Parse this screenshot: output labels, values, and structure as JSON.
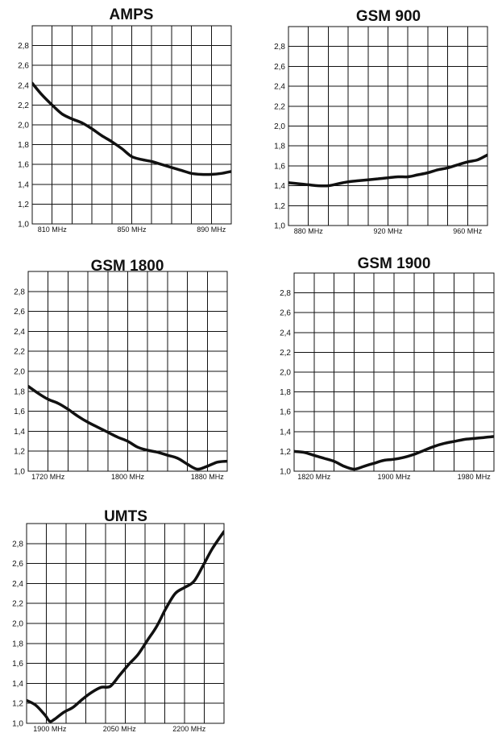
{
  "chart_data": [
    {
      "type": "line",
      "title": "AMPS",
      "ylim": [
        1.0,
        3.0
      ],
      "yticks": [
        "1,0",
        "1,2",
        "1,4",
        "1,6",
        "1,8",
        "2,0",
        "2,2",
        "2,4",
        "2,6",
        "2,8"
      ],
      "xlim": [
        800,
        900
      ],
      "xticks": [
        {
          "value": 810,
          "label": "810 MHz"
        },
        {
          "value": 850,
          "label": "850 MHz"
        },
        {
          "value": 890,
          "label": "890 MHz"
        }
      ],
      "grid": true,
      "series": [
        {
          "x": [
            800,
            805,
            810,
            815,
            820,
            825,
            830,
            835,
            840,
            845,
            850,
            855,
            860,
            865,
            870,
            875,
            880,
            885,
            890,
            895,
            900
          ],
          "y": [
            2.42,
            2.3,
            2.2,
            2.11,
            2.06,
            2.02,
            1.96,
            1.89,
            1.83,
            1.76,
            1.68,
            1.65,
            1.63,
            1.6,
            1.57,
            1.54,
            1.51,
            1.5,
            1.5,
            1.51,
            1.53
          ]
        }
      ]
    },
    {
      "type": "line",
      "title": "GSM 900",
      "ylim": [
        1.0,
        3.0
      ],
      "yticks": [
        "1,0",
        "1,2",
        "1,4",
        "1,6",
        "1,8",
        "2,0",
        "2,2",
        "2,4",
        "2,6",
        "2,8"
      ],
      "xlim": [
        870,
        970
      ],
      "xticks": [
        {
          "value": 880,
          "label": "880 MHz"
        },
        {
          "value": 920,
          "label": "920 MHz"
        },
        {
          "value": 960,
          "label": "960 MHz"
        }
      ],
      "grid": true,
      "series": [
        {
          "x": [
            870,
            875,
            880,
            885,
            890,
            895,
            900,
            905,
            910,
            915,
            920,
            925,
            930,
            935,
            940,
            945,
            950,
            955,
            960,
            965,
            970
          ],
          "y": [
            1.43,
            1.42,
            1.41,
            1.4,
            1.4,
            1.42,
            1.44,
            1.45,
            1.46,
            1.47,
            1.48,
            1.49,
            1.49,
            1.51,
            1.53,
            1.56,
            1.58,
            1.61,
            1.64,
            1.66,
            1.71
          ]
        }
      ]
    },
    {
      "type": "line",
      "title": "GSM 1800",
      "ylim": [
        1.0,
        3.0
      ],
      "yticks": [
        "1,0",
        "1,2",
        "1,4",
        "1,6",
        "1,8",
        "2,0",
        "2,2",
        "2,4",
        "2,6",
        "2,8"
      ],
      "xlim": [
        1700,
        1900
      ],
      "xticks": [
        {
          "value": 1720,
          "label": "1720 MHz"
        },
        {
          "value": 1800,
          "label": "1800 MHz"
        },
        {
          "value": 1880,
          "label": "1880 MHz"
        }
      ],
      "grid": true,
      "series": [
        {
          "x": [
            1700,
            1710,
            1720,
            1730,
            1740,
            1750,
            1760,
            1770,
            1780,
            1790,
            1800,
            1810,
            1820,
            1830,
            1840,
            1850,
            1860,
            1870,
            1880,
            1890,
            1900
          ],
          "y": [
            1.85,
            1.78,
            1.72,
            1.68,
            1.62,
            1.55,
            1.49,
            1.44,
            1.39,
            1.34,
            1.3,
            1.24,
            1.21,
            1.19,
            1.16,
            1.13,
            1.07,
            1.02,
            1.05,
            1.09,
            1.1
          ]
        }
      ]
    },
    {
      "type": "line",
      "title": "GSM 1900",
      "ylim": [
        1.0,
        3.0
      ],
      "yticks": [
        "1,0",
        "1,2",
        "1,4",
        "1,6",
        "1,8",
        "2,0",
        "2,2",
        "2,4",
        "2,6",
        "2,8"
      ],
      "xlim": [
        1800,
        2000
      ],
      "xticks": [
        {
          "value": 1820,
          "label": "1820 MHz"
        },
        {
          "value": 1900,
          "label": "1900 MHz"
        },
        {
          "value": 1980,
          "label": "1980 MHz"
        }
      ],
      "grid": true,
      "series": [
        {
          "x": [
            1800,
            1810,
            1820,
            1830,
            1840,
            1850,
            1860,
            1870,
            1880,
            1890,
            1900,
            1910,
            1920,
            1930,
            1940,
            1950,
            1960,
            1970,
            1980,
            1990,
            2000
          ],
          "y": [
            1.2,
            1.19,
            1.16,
            1.13,
            1.1,
            1.05,
            1.02,
            1.05,
            1.08,
            1.11,
            1.12,
            1.14,
            1.17,
            1.21,
            1.25,
            1.28,
            1.3,
            1.32,
            1.33,
            1.34,
            1.35
          ]
        }
      ]
    },
    {
      "type": "line",
      "title": "UMTS",
      "ylim": [
        1.0,
        3.0
      ],
      "yticks": [
        "1,0",
        "1,2",
        "1,4",
        "1,6",
        "1,8",
        "2,0",
        "2,2",
        "2,4",
        "2,6",
        "2,8"
      ],
      "xlim": [
        1850,
        2275
      ],
      "xticks": [
        {
          "value": 1900,
          "label": "1900 MHz"
        },
        {
          "value": 2050,
          "label": "2050 MHz"
        },
        {
          "value": 2200,
          "label": "2200 MHz"
        }
      ],
      "grid": true,
      "series": [
        {
          "x": [
            1850,
            1870,
            1890,
            1900,
            1910,
            1930,
            1950,
            1970,
            1990,
            2010,
            2030,
            2050,
            2070,
            2090,
            2110,
            2130,
            2150,
            2170,
            2190,
            2210,
            2230,
            2250,
            2275
          ],
          "y": [
            1.23,
            1.18,
            1.08,
            1.02,
            1.04,
            1.11,
            1.16,
            1.24,
            1.31,
            1.36,
            1.37,
            1.48,
            1.59,
            1.69,
            1.83,
            1.97,
            2.15,
            2.3,
            2.36,
            2.42,
            2.58,
            2.75,
            2.92
          ]
        }
      ]
    }
  ]
}
